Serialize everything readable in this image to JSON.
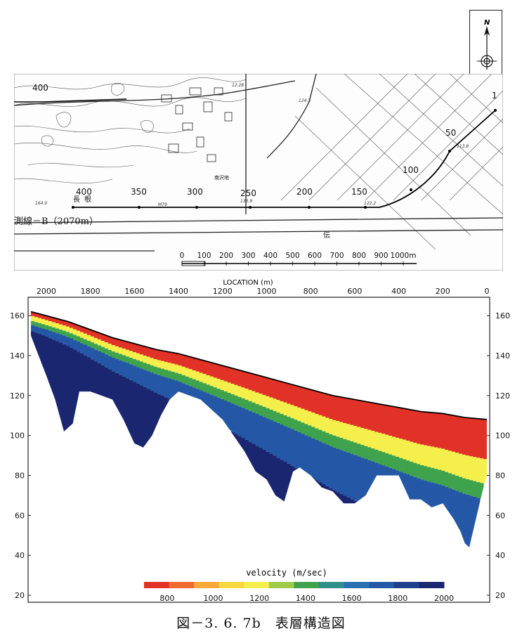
{
  "north_label": "N",
  "map": {
    "line_label": "測線－B（2070m）",
    "station_labels": [
      "1",
      "50",
      "100",
      "150",
      "200",
      "250",
      "300",
      "350",
      "400",
      "400"
    ],
    "scale_ticks": [
      "0",
      "100",
      "200",
      "300",
      "400",
      "500",
      "600",
      "700",
      "800",
      "900",
      "1000m"
    ],
    "elevation_marks": [
      "124.3",
      "113.8",
      "133.9",
      "M79",
      "122.2",
      "164.0",
      "12.28"
    ],
    "place_labels": [
      "長",
      "根",
      "南沢地",
      "伝"
    ]
  },
  "chart_data": {
    "type": "heatmap",
    "xlabel": "LOCATION (m)",
    "x_ticks_top": [
      "2000",
      "1800",
      "1600",
      "1400",
      "1200",
      "1000",
      "800",
      "600",
      "400",
      "200",
      "0"
    ],
    "y_ticks": [
      "160",
      "140",
      "120",
      "100",
      "80",
      "60",
      "40",
      "20"
    ],
    "ylim": [
      20,
      165
    ],
    "xlim": [
      2070,
      0
    ],
    "surface_profile": {
      "location": [
        2070,
        2000,
        1900,
        1800,
        1700,
        1600,
        1500,
        1400,
        1300,
        1200,
        1100,
        1000,
        900,
        800,
        700,
        600,
        500,
        400,
        300,
        200,
        100,
        0
      ],
      "elevation": [
        162,
        160,
        157,
        153,
        149,
        146,
        143,
        141,
        138,
        135,
        132,
        129,
        126,
        123,
        120,
        118,
        116,
        114,
        112,
        111,
        109,
        108
      ]
    },
    "bottom_profile": {
      "location": [
        2070,
        2000,
        1960,
        1920,
        1880,
        1850,
        1800,
        1700,
        1650,
        1600,
        1560,
        1520,
        1480,
        1440,
        1400,
        1300,
        1200,
        1100,
        1050,
        1000,
        960,
        920,
        880,
        850,
        800,
        750,
        700,
        650,
        600,
        550,
        500,
        400,
        350,
        300,
        250,
        200,
        150,
        120,
        100,
        80,
        50,
        20,
        0
      ],
      "elevation": [
        150,
        130,
        118,
        102,
        106,
        122,
        122,
        118,
        108,
        96,
        94,
        100,
        110,
        118,
        122,
        118,
        108,
        92,
        82,
        78,
        70,
        67,
        82,
        84,
        80,
        74,
        72,
        66,
        66,
        70,
        80,
        80,
        68,
        68,
        64,
        66,
        58,
        52,
        46,
        44,
        58,
        72,
        80
      ]
    },
    "legend": {
      "title": "velocity (m/sec)",
      "tick_labels": [
        "800",
        "1000",
        "1200",
        "1400",
        "1600",
        "1800",
        "2000"
      ],
      "velocity_range": [
        700,
        2000
      ],
      "colors": [
        "#e23227",
        "#f26a2e",
        "#f7a93a",
        "#f7d93f",
        "#f4ef4a",
        "#9dcb49",
        "#3fa34d",
        "#2f8f8a",
        "#2a6fb0",
        "#2458a6",
        "#1e3f8c",
        "#1a2770"
      ]
    },
    "layers": [
      {
        "velocity": 800,
        "color": "#e23227"
      },
      {
        "velocity": 1150,
        "color": "#f4ef4a"
      },
      {
        "velocity": 1450,
        "color": "#3fa34d"
      },
      {
        "velocity": 1650,
        "color": "#2458a6"
      },
      {
        "velocity": 1900,
        "color": "#1a2770"
      }
    ]
  },
  "caption": "図－3. 6. 7b　表層構造図"
}
